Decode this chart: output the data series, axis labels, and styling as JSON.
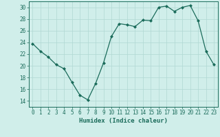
{
  "x": [
    0,
    1,
    2,
    3,
    4,
    5,
    6,
    7,
    8,
    9,
    10,
    11,
    12,
    13,
    14,
    15,
    16,
    17,
    18,
    19,
    20,
    21,
    22,
    23
  ],
  "y": [
    23.8,
    22.5,
    21.5,
    20.2,
    19.5,
    17.2,
    15.0,
    14.2,
    17.0,
    20.5,
    25.0,
    27.2,
    27.0,
    26.7,
    27.8,
    27.7,
    30.0,
    30.2,
    29.3,
    30.0,
    30.3,
    27.7,
    22.5,
    20.2
  ],
  "line_color": "#1a6b5a",
  "marker": "D",
  "marker_size": 2.0,
  "bg_color": "#d0eeea",
  "grid_color": "#b0d8d2",
  "xlabel": "Humidex (Indice chaleur)",
  "ylim": [
    13,
    31
  ],
  "xlim": [
    -0.5,
    23.5
  ],
  "yticks": [
    14,
    16,
    18,
    20,
    22,
    24,
    26,
    28,
    30
  ],
  "xticks": [
    0,
    1,
    2,
    3,
    4,
    5,
    6,
    7,
    8,
    9,
    10,
    11,
    12,
    13,
    14,
    15,
    16,
    17,
    18,
    19,
    20,
    21,
    22,
    23
  ],
  "tick_color": "#1a6b5a",
  "xlabel_fontsize": 6.5,
  "tick_fontsize": 5.5,
  "linewidth": 0.9
}
